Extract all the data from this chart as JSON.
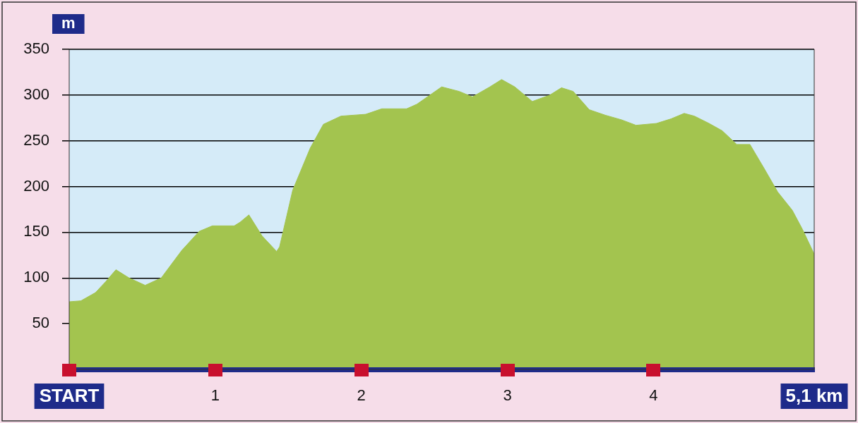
{
  "chart_data": {
    "type": "area",
    "ylabel": "m",
    "x": [
      0,
      0.08,
      0.18,
      0.25,
      0.32,
      0.41,
      0.52,
      0.63,
      0.77,
      0.89,
      0.98,
      1.13,
      1.17,
      1.23,
      1.32,
      1.42,
      1.44,
      1.53,
      1.65,
      1.74,
      1.86,
      2.03,
      2.14,
      2.31,
      2.38,
      2.55,
      2.67,
      2.76,
      2.88,
      2.96,
      3.05,
      3.17,
      3.29,
      3.37,
      3.45,
      3.56,
      3.67,
      3.78,
      3.88,
      4.02,
      4.12,
      4.21,
      4.28,
      4.38,
      4.47,
      4.57,
      4.66,
      4.76,
      4.85,
      4.95,
      5.02,
      5.1
    ],
    "series": [
      {
        "color": "#a3c44f",
        "values": [
          74,
          75,
          84,
          96,
          109,
          100,
          92,
          100,
          130,
          151,
          157,
          157,
          161,
          169,
          146,
          129,
          134,
          196,
          242,
          268,
          277,
          279,
          285,
          285,
          290,
          309,
          304,
          298,
          309,
          317,
          309,
          293,
          300,
          308,
          304,
          284,
          278,
          273,
          267,
          269,
          274,
          280,
          277,
          269,
          261,
          246,
          246,
          219,
          194,
          174,
          153,
          126
        ]
      }
    ],
    "xlim": [
      0,
      5.1
    ],
    "xticks": [
      {
        "value": 0,
        "label": "START"
      },
      1,
      2,
      3,
      4,
      {
        "value": 5.1,
        "label": "5,1 km"
      }
    ],
    "ylim": [
      0,
      350
    ],
    "yticks": [
      50,
      100,
      150,
      200,
      250,
      300,
      350
    ],
    "bands": [
      {
        "axis": "y",
        "from": 0,
        "to": 350,
        "color": "#d5ebf8"
      }
    ],
    "grid": "y",
    "legend": false
  }
}
